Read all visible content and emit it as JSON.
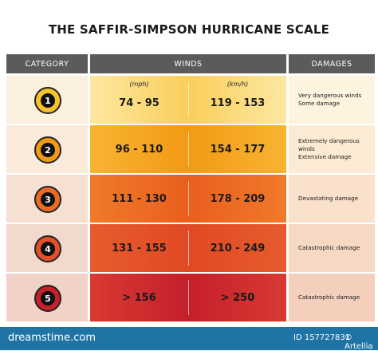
{
  "header": {
    "title": "THE SAFFIR-SIMPSON HURRICANE SCALE"
  },
  "table": {
    "columns": [
      "CATEGORY",
      "WINDS",
      "DAMAGES"
    ],
    "units": [
      "(mph)",
      "(km/h)"
    ],
    "rows": [
      {
        "category": "1",
        "mph": "74 - 95",
        "kmh": "119 - 153",
        "damage": [
          "Very dangerous winds",
          "Some damage"
        ]
      },
      {
        "category": "2",
        "mph": "96 - 110",
        "kmh": "154 - 177",
        "damage": [
          "Extremely dangerous winds",
          "Extensive damage"
        ]
      },
      {
        "category": "3",
        "mph": "111 - 130",
        "kmh": "178 - 209",
        "damage": [
          "Devastating damage"
        ]
      },
      {
        "category": "4",
        "mph": "131 - 155",
        "kmh": "210 - 249",
        "damage": [
          "Catastrophic damage"
        ]
      },
      {
        "category": "5",
        "mph": "> 156",
        "kmh": "> 250",
        "damage": [
          "Catastrophic damage"
        ]
      }
    ]
  },
  "footer": {
    "site": "dreamstime.com",
    "id": "ID 157727831",
    "credit": "© Artellia"
  }
}
